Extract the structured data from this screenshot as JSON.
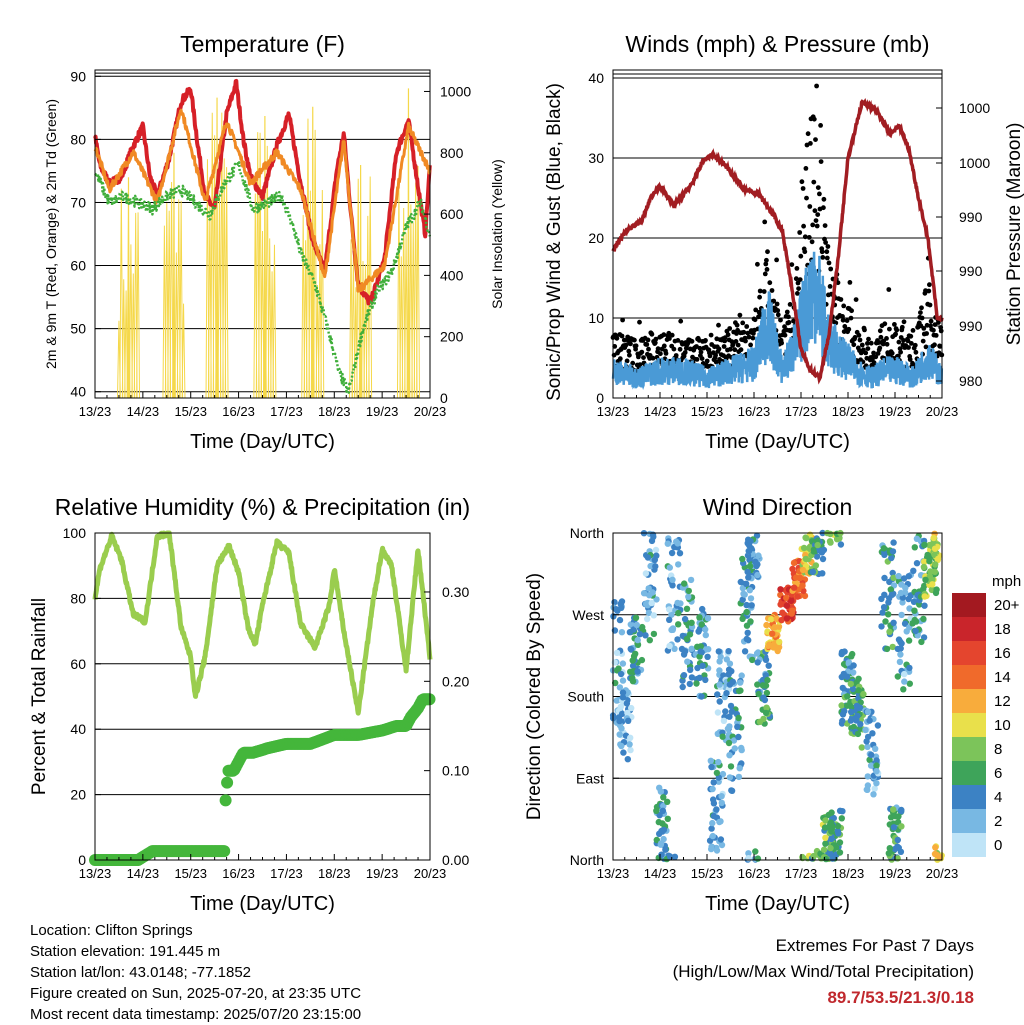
{
  "colors": {
    "temp_red": "#d62027",
    "temp_orange": "#f08a24",
    "dewpoint_green": "#3fae3a",
    "solar_yellow": "#f5d84a",
    "wind_blue": "#4a9ad6",
    "gust_black": "#000000",
    "pressure_maroon": "#a11d22",
    "rh_green": "#9acd4e",
    "precip_green": "#44b63b",
    "extremes_red": "#c0282d"
  },
  "time_ticks": [
    "13/23",
    "14/23",
    "15/23",
    "16/23",
    "17/23",
    "18/23",
    "19/23",
    "20/23"
  ],
  "chart_data": [
    {
      "id": "temperature",
      "type": "line",
      "title": "Temperature (F)",
      "xlabel": "Time (Day/UTC)",
      "ylabel": "2m & 9m T (Red, Orange) & 2m Td (Green)",
      "ylabel_right": "Solar Insolation (Yellow)",
      "x_range": [
        0,
        7
      ],
      "ylim": [
        39,
        91
      ],
      "yticks": [
        40,
        50,
        60,
        70,
        80,
        90
      ],
      "ylim_right": [
        0,
        1070
      ],
      "yticks_right": [
        0,
        200,
        400,
        600,
        800,
        1000
      ],
      "hlines": [
        90.5
      ],
      "series": [
        {
          "name": "2m T",
          "color": "#d62027",
          "x": [
            0,
            0.1,
            0.3,
            0.55,
            0.8,
            1.0,
            1.15,
            1.3,
            1.55,
            1.8,
            2.0,
            2.15,
            2.3,
            2.5,
            2.75,
            2.95,
            3.1,
            3.25,
            3.5,
            3.8,
            4.05,
            4.3,
            4.55,
            4.8,
            5.05,
            5.2,
            5.35,
            5.5,
            5.75,
            6.05,
            6.3,
            6.55,
            6.8,
            6.9,
            7.0
          ],
          "y": [
            80.5,
            76,
            73,
            74,
            79,
            82,
            74,
            71,
            77,
            86,
            88,
            79,
            71,
            69,
            84,
            89,
            80,
            74,
            71,
            79,
            84,
            73,
            64,
            59,
            75,
            81,
            68,
            57,
            54,
            61,
            78,
            83,
            70,
            65,
            76
          ]
        },
        {
          "name": "9m T",
          "color": "#f08a24",
          "x": [
            0,
            0.3,
            0.8,
            1.3,
            1.8,
            2.3,
            2.75,
            3.25,
            3.8,
            4.3,
            4.8,
            5.2,
            5.5,
            6.05,
            6.55,
            7.0
          ],
          "y": [
            79,
            72,
            78,
            70,
            85,
            70,
            83,
            73,
            78,
            72,
            58,
            80,
            56,
            60,
            82,
            75
          ]
        },
        {
          "name": "2m Td",
          "color": "#3fae3a",
          "x": [
            0,
            0.3,
            0.6,
            0.9,
            1.2,
            1.5,
            1.8,
            2.1,
            2.4,
            2.7,
            3.0,
            3.3,
            3.6,
            3.9,
            4.1,
            4.3,
            4.6,
            4.9,
            5.1,
            5.3,
            5.6,
            5.9,
            6.2,
            6.5,
            6.8,
            7.0
          ],
          "y": [
            75,
            70,
            71,
            70,
            69,
            71,
            72,
            70,
            68,
            73,
            76,
            69,
            70,
            71,
            67,
            62,
            57,
            49,
            43,
            40,
            50,
            56,
            59,
            66,
            70,
            65
          ]
        },
        {
          "name": "Solar Insolation",
          "axis": "right",
          "color": "#f5d84a",
          "peaks_x": [
            0.7,
            1.65,
            2.55,
            3.55,
            4.55,
            5.55,
            6.55
          ],
          "peaks_y": [
            720,
            800,
            980,
            920,
            950,
            760,
            1010
          ]
        }
      ]
    },
    {
      "id": "winds",
      "type": "scatter",
      "title": "Winds (mph) & Pressure (mb)",
      "xlabel": "Time (Day/UTC)",
      "ylabel": "Sonic/Prop Wind & Gust (Blue, Black)",
      "ylabel_right": "Station Pressure (Maroon)",
      "x_range": [
        0,
        7
      ],
      "ylim": [
        0,
        41
      ],
      "yticks": [
        0,
        10,
        20,
        30,
        40
      ],
      "hlines": [
        40.5
      ],
      "yticklabels_right": [
        "980",
        "990",
        "990",
        "990",
        "1000",
        "1000"
      ],
      "series": [
        {
          "name": "Wind",
          "color": "#4a9ad6",
          "x": [
            0,
            0.5,
            1.0,
            1.5,
            2.0,
            2.5,
            3.0,
            3.3,
            3.6,
            3.9,
            4.1,
            4.3,
            4.6,
            4.9,
            5.2,
            5.5,
            5.8,
            6.1,
            6.4,
            6.7,
            7.0
          ],
          "y": [
            4,
            3,
            4,
            4,
            3,
            4,
            5,
            11,
            4,
            8,
            13,
            17,
            8,
            6,
            4,
            3,
            4,
            4,
            3,
            6,
            3
          ]
        },
        {
          "name": "Gust",
          "color": "#000000",
          "x": [
            0,
            0.5,
            1.0,
            1.5,
            2.0,
            2.5,
            3.0,
            3.3,
            3.6,
            3.9,
            4.1,
            4.3,
            4.6,
            4.9,
            5.2,
            5.5,
            5.8,
            6.1,
            6.4,
            6.7,
            7.0
          ],
          "y": [
            7,
            6,
            7,
            6,
            6,
            7,
            8,
            15,
            7,
            13,
            25,
            31,
            16,
            10,
            8,
            6,
            8,
            7,
            6,
            12,
            7
          ]
        },
        {
          "name": "Station Pressure",
          "axis": "right",
          "color": "#a11d22",
          "x": [
            0,
            0.3,
            0.6,
            0.8,
            1.0,
            1.3,
            1.7,
            1.9,
            2.1,
            2.4,
            2.8,
            3.1,
            3.4,
            3.6,
            3.8,
            4.0,
            4.2,
            4.4,
            4.6,
            4.8,
            5.0,
            5.3,
            5.6,
            5.9,
            6.1,
            6.3,
            6.5,
            6.7,
            6.9,
            7.0
          ],
          "y": [
            18.5,
            21,
            22,
            25,
            26.5,
            24,
            27,
            29.5,
            30.5,
            29,
            26,
            25.5,
            23,
            21,
            14,
            6,
            3.5,
            2.5,
            8,
            18,
            30,
            37,
            36,
            33,
            34,
            31,
            25,
            20,
            10,
            10
          ]
        }
      ]
    },
    {
      "id": "humidity",
      "type": "line",
      "title": "Relative Humidity (%) & Precipitation (in)",
      "xlabel": "Time (Day/UTC)",
      "ylabel": "Percent & Total Rainfall",
      "x_range": [
        0,
        7
      ],
      "ylim": [
        0,
        100
      ],
      "yticks": [
        0,
        20,
        40,
        60,
        80,
        100
      ],
      "ylim_right": [
        0,
        0.366
      ],
      "yticks_right": [
        0,
        0.1,
        0.2,
        0.3
      ],
      "yticklabels_right": [
        "0.00",
        "0.10",
        "0.20",
        "0.30"
      ],
      "series": [
        {
          "name": "Relative Humidity",
          "color": "#9acd4e",
          "x": [
            0,
            0.1,
            0.35,
            0.55,
            0.8,
            1.05,
            1.3,
            1.55,
            1.8,
            2.0,
            2.1,
            2.3,
            2.55,
            2.8,
            3.0,
            3.2,
            3.35,
            3.5,
            3.8,
            4.05,
            4.3,
            4.6,
            4.9,
            5.0,
            5.2,
            5.5,
            5.8,
            6.0,
            6.2,
            6.5,
            6.75,
            7.0
          ],
          "y": [
            80,
            89,
            99,
            92,
            75,
            73,
            99,
            100,
            71,
            62,
            50,
            62,
            90,
            96,
            88,
            71,
            66,
            78,
            97,
            94,
            72,
            65,
            78,
            89,
            70,
            45,
            78,
            95,
            90,
            58,
            95,
            62
          ]
        },
        {
          "name": "Total Precipitation",
          "axis": "right",
          "color": "#44b63b",
          "x": [
            0,
            0.9,
            1.2,
            2.5,
            2.7,
            2.72,
            2.78,
            2.9,
            3.1,
            3.3,
            3.6,
            4.0,
            4.5,
            5.0,
            5.5,
            6.0,
            6.3,
            6.5,
            6.6,
            6.75,
            6.85,
            7.0
          ],
          "y": [
            0.0,
            0.0,
            0.01,
            0.01,
            0.01,
            0.06,
            0.1,
            0.1,
            0.12,
            0.12,
            0.125,
            0.13,
            0.13,
            0.14,
            0.14,
            0.145,
            0.15,
            0.15,
            0.16,
            0.17,
            0.18,
            0.18
          ]
        }
      ]
    },
    {
      "id": "wind_direction",
      "type": "scatter",
      "title": "Wind Direction",
      "xlabel": "Time (Day/UTC)",
      "ylabel": "Direction (Colored By Speed)",
      "x_range": [
        0,
        7
      ],
      "ylim": [
        0,
        360
      ],
      "yticks": [
        0,
        90,
        180,
        270,
        360
      ],
      "yticklabels": [
        "North",
        "East",
        "South",
        "West",
        "North"
      ],
      "clusters": [
        {
          "x": 0.1,
          "dir": 220,
          "spread": 70,
          "speed": 3
        },
        {
          "x": 0.25,
          "dir": 150,
          "spread": 40,
          "speed": 2
        },
        {
          "x": 0.5,
          "dir": 230,
          "spread": 40,
          "speed": 4
        },
        {
          "x": 0.8,
          "dir": 300,
          "spread": 60,
          "speed": 3
        },
        {
          "x": 1.05,
          "dir": 40,
          "spread": 40,
          "speed": 4
        },
        {
          "x": 1.3,
          "dir": 300,
          "spread": 70,
          "speed": 3
        },
        {
          "x": 1.6,
          "dir": 250,
          "spread": 60,
          "speed": 4
        },
        {
          "x": 1.9,
          "dir": 230,
          "spread": 50,
          "speed": 4
        },
        {
          "x": 2.2,
          "dir": 60,
          "spread": 50,
          "speed": 3
        },
        {
          "x": 2.35,
          "dir": 180,
          "spread": 50,
          "speed": 3
        },
        {
          "x": 2.6,
          "dir": 140,
          "spread": 70,
          "speed": 4
        },
        {
          "x": 2.85,
          "dir": 280,
          "spread": 60,
          "speed": 4
        },
        {
          "x": 3.0,
          "dir": 340,
          "spread": 30,
          "speed": 3
        },
        {
          "x": 3.2,
          "dir": 190,
          "spread": 40,
          "speed": 5
        },
        {
          "x": 3.4,
          "dir": 250,
          "spread": 20,
          "speed": 12
        },
        {
          "x": 3.7,
          "dir": 280,
          "spread": 20,
          "speed": 16
        },
        {
          "x": 3.95,
          "dir": 310,
          "spread": 20,
          "speed": 14
        },
        {
          "x": 4.15,
          "dir": 340,
          "spread": 25,
          "speed": 10
        },
        {
          "x": 4.35,
          "dir": 340,
          "spread": 30,
          "speed": 6
        },
        {
          "x": 4.6,
          "dir": 25,
          "spread": 30,
          "speed": 7
        },
        {
          "x": 4.75,
          "dir": 20,
          "spread": 35,
          "speed": 6
        },
        {
          "x": 5.0,
          "dir": 190,
          "spread": 40,
          "speed": 5
        },
        {
          "x": 5.2,
          "dir": 160,
          "spread": 40,
          "speed": 6
        },
        {
          "x": 5.5,
          "dir": 120,
          "spread": 50,
          "speed": 3
        },
        {
          "x": 5.85,
          "dir": 290,
          "spread": 60,
          "speed": 5
        },
        {
          "x": 6.0,
          "dir": 30,
          "spread": 30,
          "speed": 5
        },
        {
          "x": 6.2,
          "dir": 250,
          "spread": 70,
          "speed": 3
        },
        {
          "x": 6.5,
          "dir": 300,
          "spread": 60,
          "speed": 4
        },
        {
          "x": 6.75,
          "dir": 320,
          "spread": 30,
          "speed": 8
        },
        {
          "x": 6.92,
          "dir": 350,
          "spread": 25,
          "speed": 10
        }
      ]
    }
  ],
  "colorbar": {
    "title": "mph",
    "labels": [
      "20+",
      "18",
      "16",
      "14",
      "12",
      "10",
      "8",
      "6",
      "4",
      "2",
      "0"
    ],
    "colors": [
      "#a31920",
      "#c9252b",
      "#e4452e",
      "#f06a2b",
      "#f8ac3c",
      "#e9e04b",
      "#7cc45a",
      "#3ea45a",
      "#3c82c4",
      "#78b8e3",
      "#bfe4f7"
    ]
  },
  "info": {
    "location": "Location: Clifton Springs",
    "elevation": "Station elevation: 191.445 m",
    "latlon": "Station lat/lon: 43.0148; -77.1852",
    "created": "Figure created on Sun, 2025-07-20, at 23:35 UTC",
    "recent": "Most recent data timestamp: 2025/07/20 23:15:00"
  },
  "extremes": {
    "title": "Extremes For Past 7 Days",
    "subtitle": "(High/Low/Max Wind/Total Precipitation)",
    "values": "89.7/53.5/21.3/0.18"
  }
}
